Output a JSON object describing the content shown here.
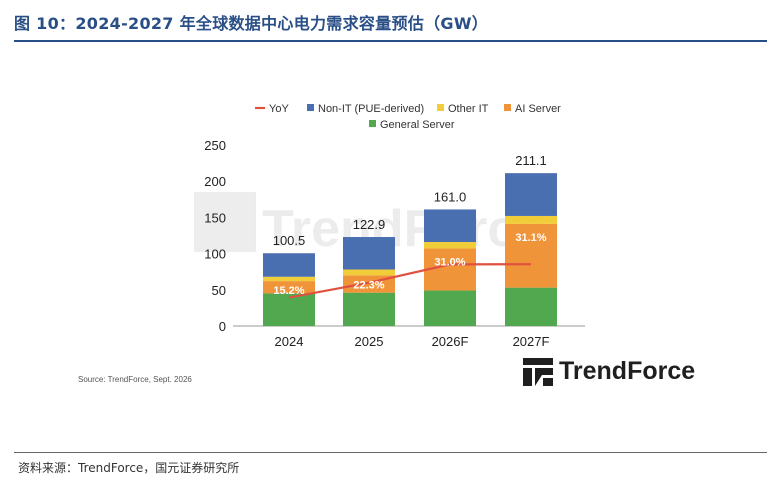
{
  "title": "图 10：2024-2027 年全球数据中心电力需求容量预估（GW）",
  "footer": "资料来源：TrendForce，国元证券研究所",
  "note": "Source: TrendForce, Sept. 2026",
  "watermark_text": "TrendForce",
  "logo_text": "TrendForce",
  "colors": {
    "title": "#2a4f86",
    "yoy": "#e0513f",
    "non_it": "#4a6fb0",
    "other_it": "#f2cd3a",
    "ai_server": "#f0943a",
    "general_server": "#52a84f"
  },
  "chart_data": {
    "type": "bar",
    "stacked": true,
    "categories": [
      "2024",
      "2025",
      "2026F",
      "2027F"
    ],
    "series": [
      {
        "name": "General Server",
        "color": "#52a84f",
        "values": [
          45,
          46,
          49,
          53
        ]
      },
      {
        "name": "AI Server",
        "color": "#f0943a",
        "values": [
          17,
          24,
          58,
          88
        ]
      },
      {
        "name": "Other IT",
        "color": "#f2cd3a",
        "values": [
          6,
          8,
          9,
          11
        ]
      },
      {
        "name": "Non-IT (PUE-derived)",
        "color": "#4a6fb0",
        "values": [
          32.5,
          44.9,
          45.0,
          59.1
        ]
      }
    ],
    "totals": [
      "100.5",
      "122.9",
      "161.0",
      "211.1"
    ],
    "yoy": {
      "name": "YoY",
      "color": "#e0513f",
      "values": [
        15.2,
        22.3,
        31.0,
        31.1
      ],
      "labels": [
        "15.2%",
        "22.3%",
        "31.0%",
        "31.1%"
      ]
    },
    "legend": [
      "YoY",
      "Non-IT (PUE-derived)",
      "Other IT",
      "AI Server",
      "General Server"
    ],
    "ylim": [
      0,
      250
    ],
    "yticks": [
      "0",
      "50",
      "100",
      "150",
      "200",
      "250"
    ],
    "legend_position": "top"
  }
}
